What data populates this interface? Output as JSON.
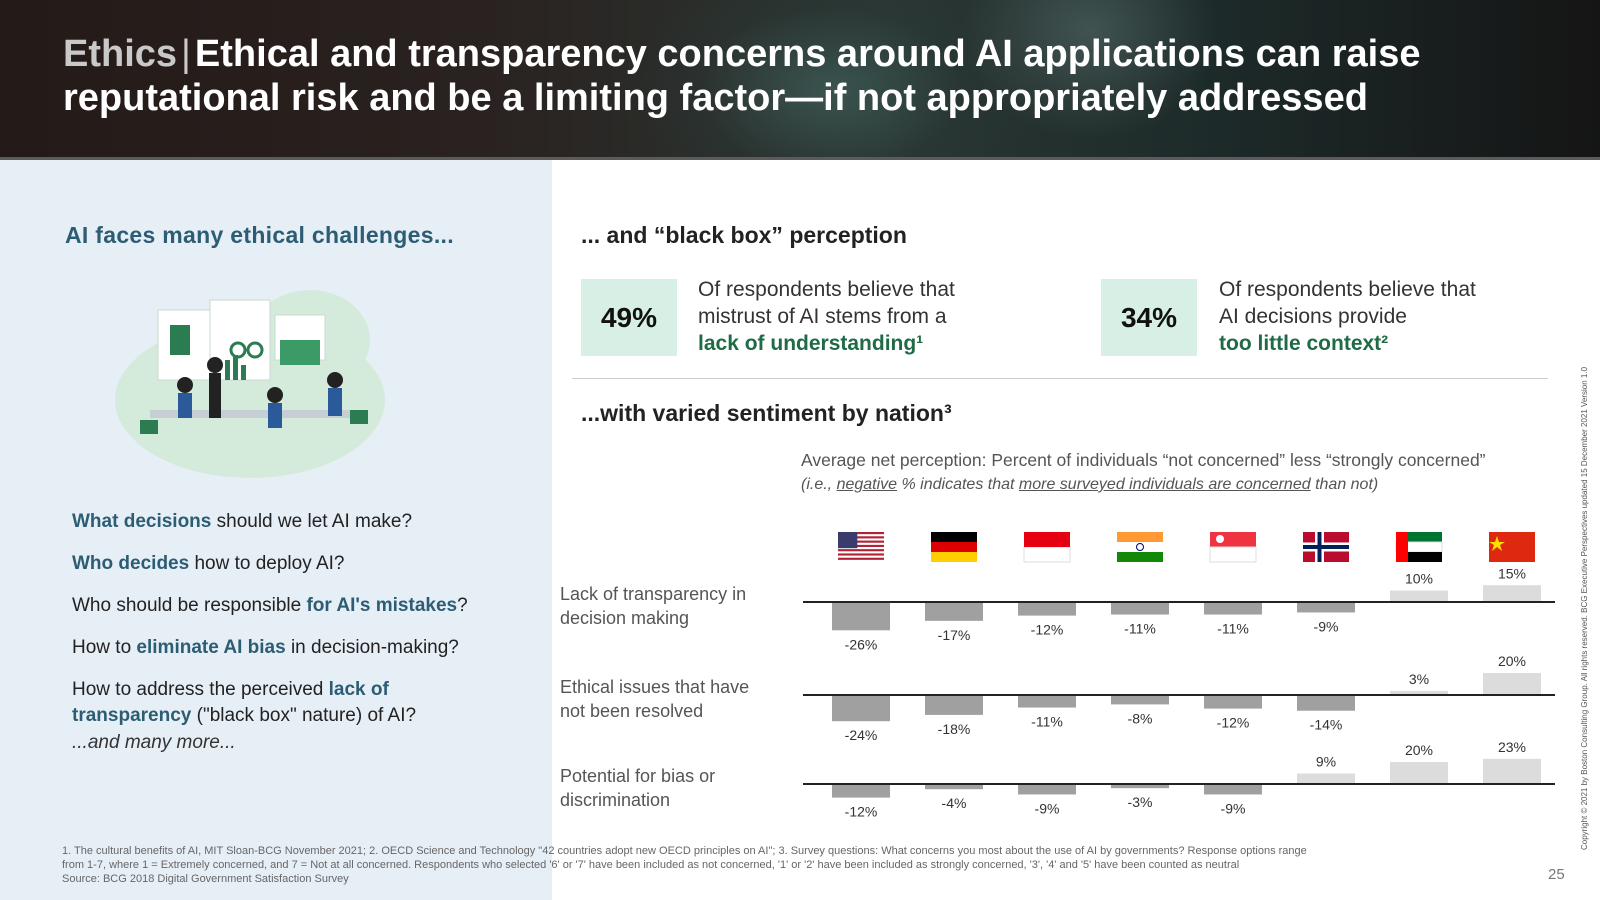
{
  "header": {
    "tag": "Ethics",
    "separator": "|",
    "title": "Ethical and transparency concerns around AI applications can raise reputational risk and be a limiting factor—if not appropriately addressed"
  },
  "left": {
    "heading": "AI faces many ethical challenges...",
    "questions": [
      {
        "bold": "What decisions",
        "rest": " should we let AI make?"
      },
      {
        "bold": "Who decides",
        "rest": " how to deploy AI?"
      },
      {
        "pre": "Who should be responsible ",
        "bold": "for AI's mistakes",
        "rest": "?"
      },
      {
        "pre": "How to ",
        "bold": "eliminate AI bias",
        "rest": " in decision-making?"
      },
      {
        "pre": "How to address the perceived ",
        "bold": "lack of transparency",
        "rest": " (\"black box\" nature) of AI?"
      }
    ],
    "more": "...and many more..."
  },
  "right": {
    "heading1": "... and “black box” perception",
    "stat1": {
      "value": "49%",
      "text": "Of respondents believe that mistrust of AI stems from a",
      "highlight": "lack of understanding¹"
    },
    "stat2": {
      "value": "34%",
      "text": "Of respondents believe that AI decisions provide",
      "highlight": "too little context²"
    },
    "heading2": "...with varied sentiment by nation³",
    "subtitle": "Average net perception: Percent of individuals “not concerned” less “strongly concerned”",
    "note_pre": "(i.e., ",
    "note_u1": "negative",
    "note_mid": " % indicates that ",
    "note_u2": "more surveyed individuals are concerned",
    "note_post": " than not)"
  },
  "chart_data": {
    "type": "bar",
    "categories": [
      "United States",
      "Germany",
      "Indonesia",
      "India",
      "Singapore",
      "Norway",
      "United Arab Emirates",
      "China"
    ],
    "flag_icons": [
      "flag-us-icon",
      "flag-de-icon",
      "flag-id-icon",
      "flag-in-icon",
      "flag-sg-icon",
      "flag-no-icon",
      "flag-ae-icon",
      "flag-cn-icon"
    ],
    "series": [
      {
        "name": "Lack of transparency in decision making",
        "values": [
          -26,
          -17,
          -12,
          -11,
          -11,
          -9,
          10,
          15
        ]
      },
      {
        "name": "Ethical issues that have not been resolved",
        "values": [
          -24,
          -18,
          -11,
          -8,
          -12,
          -14,
          3,
          20
        ]
      },
      {
        "name": "Potential for bias or discrimination",
        "values": [
          -12,
          -4,
          -9,
          -3,
          -9,
          9,
          20,
          23
        ]
      }
    ],
    "unit": "%",
    "colors": {
      "negative": "#a0a0a0",
      "positive": "#dcdcdc",
      "axis": "#222222"
    }
  },
  "footnote": [
    "1. The cultural benefits of AI, MIT Sloan-BCG November 2021; 2. OECD Science and Technology \"42 countries adopt new OECD principles on AI\"; 3. Survey questions: What concerns you most about the use of AI by governments? Response options range",
    "from 1-7, where 1 = Extremely concerned, and 7 = Not at all concerned. Respondents who selected '6' or '7' have been included as not concerned, '1' or '2' have been included as strongly concerned, '3', '4' and '5' have been counted as neutral",
    "Source: BCG 2018 Digital Government Satisfaction Survey"
  ],
  "page_number": "25",
  "copyright": "Copyright © 2021 by Boston Consulting Group. All rights reserved. BCG Executive Perspectives updated 15 December 2021 Version 1.0"
}
